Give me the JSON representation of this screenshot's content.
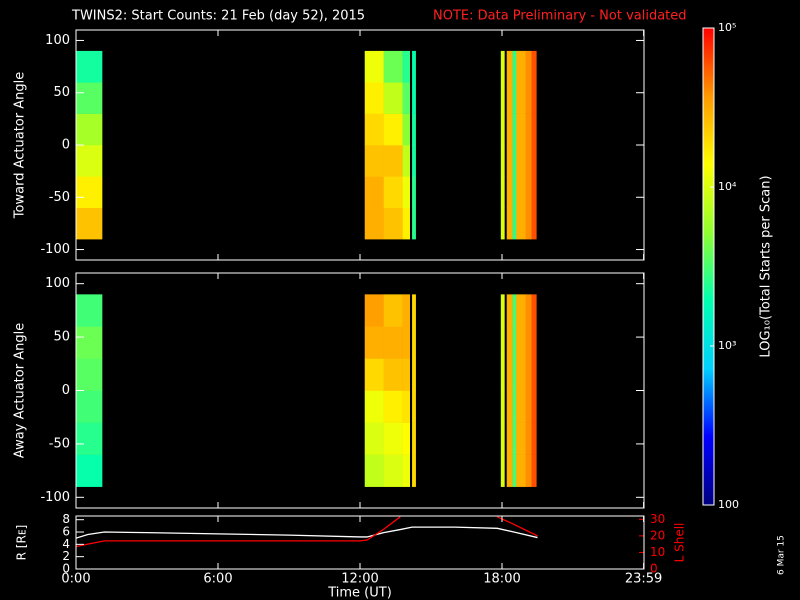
{
  "title": {
    "main": "TWINS2: Start Counts: 21 Feb (day  52), 2015",
    "note": "NOTE: Data Preliminary - Not validated"
  },
  "stamp": "6 Mar 15",
  "colorbar": {
    "label": "LOG₁₀(Total Starts per Scan)",
    "clim": [
      100,
      100000
    ],
    "log": true,
    "colors": [
      "#000080",
      "#0000ff",
      "#00d0ff",
      "#00ffb0",
      "#90ff30",
      "#ffff00",
      "#ff9900",
      "#ff0000"
    ],
    "ticks": [
      {
        "value": 100000,
        "label": "10⁵"
      },
      {
        "value": 10000,
        "label": "10⁴"
      },
      {
        "value": 1000,
        "label": "10³"
      },
      100
    ]
  },
  "chart_data": [
    {
      "type": "heatmap",
      "ylabel": "Toward Actuator Angle",
      "x_edges": [
        0,
        1.1,
        12.2,
        13.0,
        13.8,
        14.1,
        14.2,
        14.35,
        17.95,
        18.1,
        18.2,
        18.45,
        18.6,
        19.0,
        19.25,
        19.45
      ],
      "y_edges": [
        -90,
        -60,
        -30,
        0,
        30,
        60,
        90
      ],
      "z": [
        [
          25000,
          16000,
          10000,
          6300,
          3500,
          2200
        ],
        null,
        [
          30000,
          30000,
          25000,
          20000,
          16000,
          12000
        ],
        [
          25000,
          20000,
          25000,
          16000,
          8000,
          4000
        ],
        [
          16000,
          12000,
          8000,
          5000,
          3500,
          2500
        ],
        null,
        [
          2500,
          2500,
          2200,
          2200,
          2000,
          2000
        ],
        null,
        [
          10000,
          10000,
          10000,
          10000,
          10000,
          10000
        ],
        null,
        [
          30000,
          30000,
          30000,
          30000,
          30000,
          30000
        ],
        [
          2500,
          2500,
          2500,
          2500,
          2500,
          2500
        ],
        [
          30000,
          30000,
          30000,
          30000,
          30000,
          30000
        ],
        [
          40000,
          40000,
          40000,
          40000,
          40000,
          40000
        ],
        [
          60000,
          60000,
          60000,
          60000,
          60000,
          60000
        ]
      ],
      "xlim": [
        0,
        24
      ],
      "ylim": [
        -110,
        110
      ],
      "yticks": [
        -100,
        -50,
        0,
        50,
        100
      ]
    },
    {
      "type": "heatmap",
      "ylabel": "Away Actuator Angle",
      "x_edges": [
        0,
        1.1,
        12.2,
        13.0,
        13.8,
        14.1,
        14.2,
        14.35,
        17.95,
        18.1,
        18.2,
        18.45,
        18.6,
        19.0,
        19.25,
        19.45
      ],
      "y_edges": [
        -90,
        -60,
        -30,
        0,
        30,
        60,
        90
      ],
      "z": [
        [
          2000,
          2500,
          3000,
          3500,
          4000,
          3000
        ],
        null,
        [
          8000,
          10000,
          12000,
          20000,
          30000,
          35000
        ],
        [
          10000,
          12000,
          16000,
          25000,
          30000,
          25000
        ],
        [
          12000,
          14000,
          18000,
          25000,
          30000,
          30000
        ],
        null,
        [
          20000,
          20000,
          20000,
          20000,
          20000,
          20000
        ],
        null,
        [
          10000,
          10000,
          10000,
          10000,
          10000,
          10000
        ],
        null,
        [
          30000,
          30000,
          30000,
          30000,
          30000,
          30000
        ],
        [
          3000,
          3000,
          3000,
          3000,
          3000,
          3000
        ],
        [
          30000,
          30000,
          30000,
          30000,
          30000,
          30000
        ],
        [
          40000,
          40000,
          40000,
          40000,
          40000,
          40000
        ],
        [
          60000,
          60000,
          60000,
          60000,
          60000,
          60000
        ]
      ],
      "xlim": [
        0,
        24
      ],
      "ylim": [
        -110,
        110
      ],
      "yticks": [
        -100,
        -50,
        0,
        50,
        100
      ]
    },
    {
      "type": "line",
      "xlabel": "Time (UT)",
      "x": [
        0,
        0.5,
        1.2,
        3,
        6,
        9,
        12,
        12.3,
        13.0,
        13.7,
        14.2,
        16,
        17.8,
        18.5,
        19.5
      ],
      "series": [
        {
          "name": "R [Rᴇ]",
          "color": "#ffffff",
          "values": [
            5.0,
            5.6,
            6.0,
            5.9,
            5.7,
            5.5,
            5.2,
            5.2,
            5.9,
            6.4,
            6.8,
            6.8,
            6.6,
            6.0,
            5.1
          ]
        },
        {
          "name": "L Shell",
          "color": "#ff0000",
          "axis": "y2",
          "values": [
            13.5,
            15,
            17,
            17,
            17,
            17,
            17,
            17.5,
            24,
            31.5,
            null,
            null,
            31.5,
            27,
            20
          ]
        }
      ],
      "xlim": [
        0,
        24
      ],
      "xticks": [
        {
          "value": 0,
          "label": "0:00"
        },
        {
          "value": 6,
          "label": "6:00"
        },
        {
          "value": 12,
          "label": "12:00"
        },
        {
          "value": 18,
          "label": "18:00"
        },
        {
          "value": 23.983,
          "label": "23:59"
        }
      ],
      "ylim": [
        0,
        8.6
      ],
      "yticks": [
        0,
        2,
        4,
        6,
        8
      ],
      "y2lim": [
        0,
        32
      ],
      "y2ticks": [
        0,
        10,
        20,
        30
      ]
    }
  ]
}
